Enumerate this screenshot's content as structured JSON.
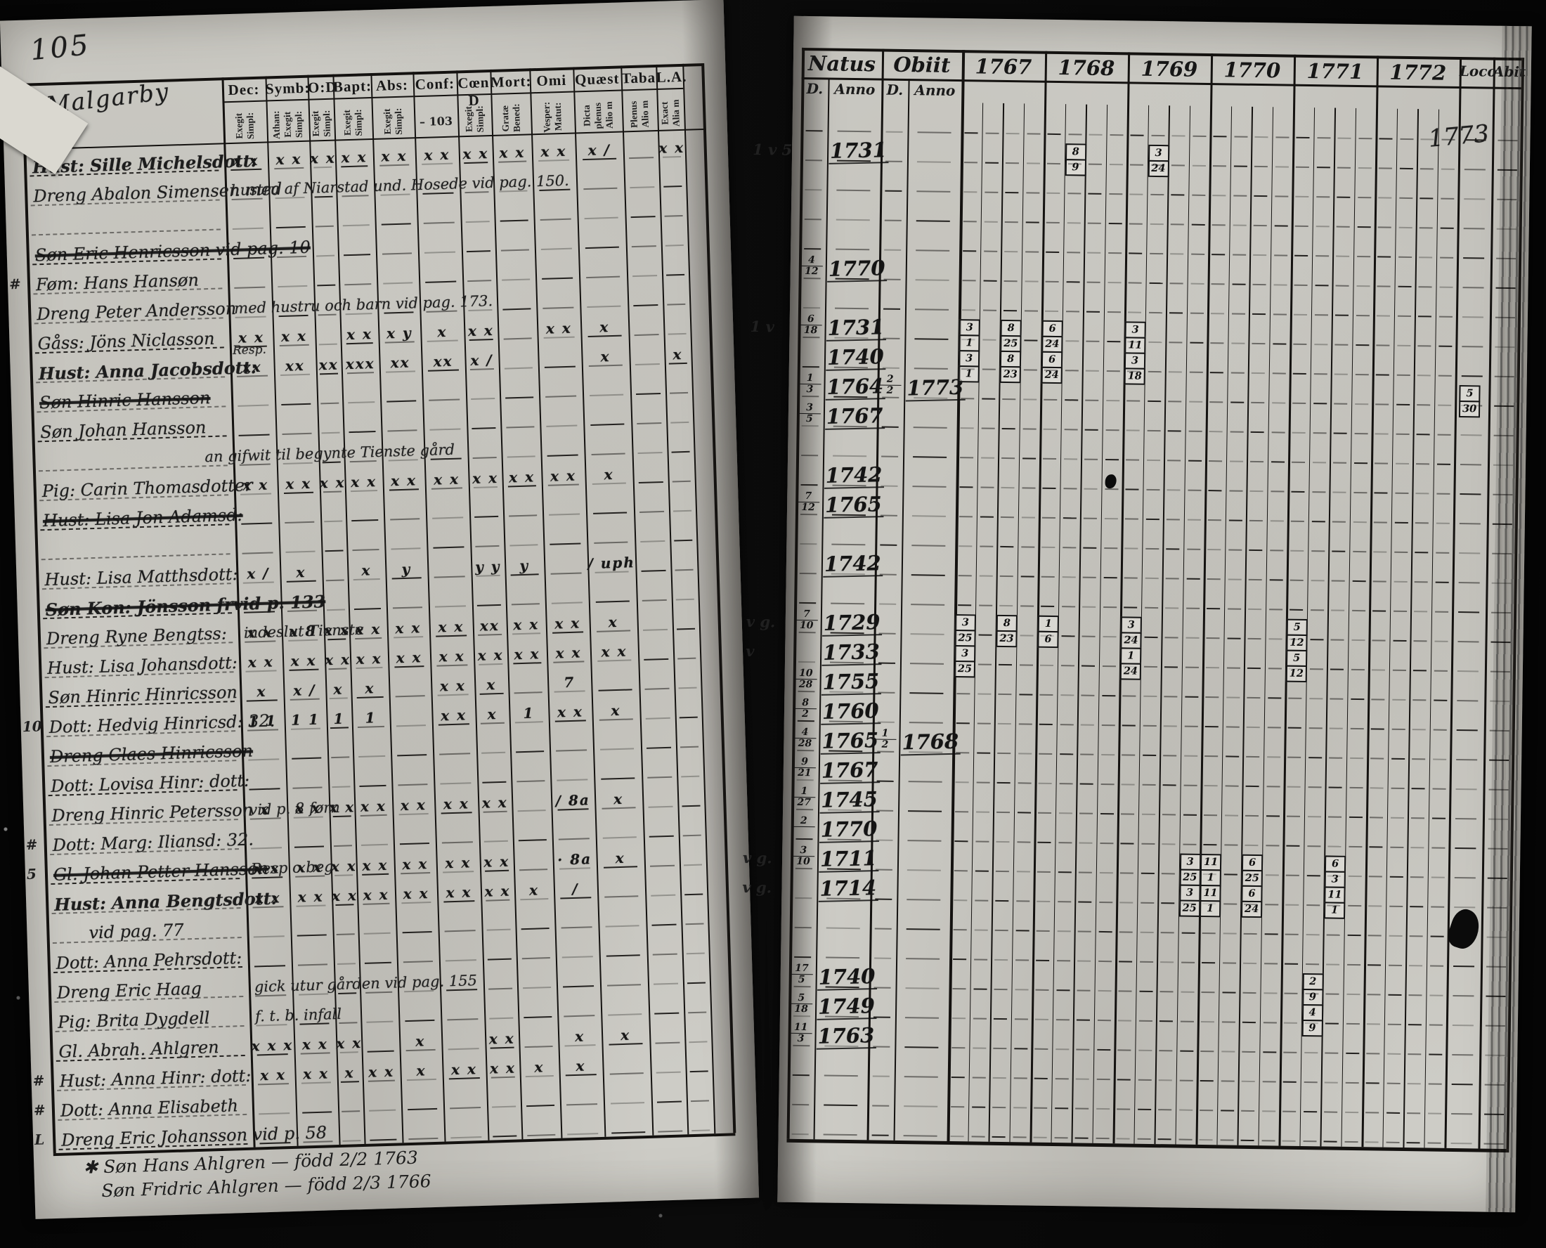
{
  "document": {
    "left_page": {
      "page_number": "105",
      "place_title": "Malgarby",
      "columns": [
        {
          "label": "Dec:",
          "subs": [
            "Exegit",
            "Simpl:"
          ]
        },
        {
          "label": "Symb:",
          "subs": [
            "Athan:",
            "Exegit",
            "Simpl:"
          ]
        },
        {
          "label": "O:D",
          "subs": [
            "Exegit",
            "Simpl:"
          ]
        },
        {
          "label": "Bapt:",
          "subs": [
            "Exegit",
            "Simpl:"
          ]
        },
        {
          "label": "Abs:",
          "subs": [
            "Exegit",
            "Simpl:"
          ]
        },
        {
          "label": "Conf:",
          "subs": [],
          "foot": "– 103"
        },
        {
          "label": "Cœn D",
          "subs": [
            "Exegit",
            "Simpl:"
          ]
        },
        {
          "label": "Mort:",
          "subs": [
            "Gratæ",
            "Bened:"
          ]
        },
        {
          "label": "Omi",
          "subs": [
            "Vesper:",
            "Matut:"
          ]
        },
        {
          "label": "Quæst",
          "subs": [
            "Dicta",
            "plenus",
            "Alio m"
          ]
        },
        {
          "label": "Taba",
          "subs": [
            "Plenus",
            "Alio m"
          ]
        },
        {
          "label": "L.A.",
          "subs": [
            "Exact",
            "Alia m"
          ]
        }
      ],
      "rows": [
        {
          "name": "Hust: Sille Michelsdott:",
          "bold": true,
          "marks": [
            "x x",
            "x x",
            "x x",
            "x x",
            "x x",
            "x x",
            "x x",
            "x x",
            "x x",
            "x /",
            "",
            "x x"
          ]
        },
        {
          "name": "Dreng Abalon Simensen med",
          "note": "hustru af Niarstad und. Hosede  vid pag. 150."
        },
        {},
        {
          "name": "Søn Eric Henricsson   vid pag. 10",
          "strike": true
        },
        {
          "margin": "#",
          "name": "Føm: Hans Hansøn"
        },
        {
          "name": "Dreng Peter Andersson",
          "note": "med hustru och barn  vid pag. 173."
        },
        {
          "name": "Gåss: Jöns Niclasson",
          "marks": [
            "x x",
            "x x",
            "",
            "x x",
            "x y",
            "x",
            "x x",
            "",
            "x x",
            "x",
            "",
            ""
          ]
        },
        {
          "name": "Hust: Anna Jacobsdott:",
          "bold": true,
          "sup": "Resp.",
          "marks": [
            "xx",
            "xx",
            "xx",
            "xxx",
            "xx",
            "xx",
            "x /",
            "",
            "",
            "x",
            "",
            "x"
          ]
        },
        {
          "name": "Søn Hinric Hansson",
          "strike": true
        },
        {
          "name": "Søn Johan Hansson"
        },
        {
          "name": "",
          "note": "an gifwit til begynte   Tienste gård"
        },
        {
          "name": "Pig: Carin Thomasdotter",
          "marks": [
            "x x",
            "x x",
            "x x",
            "x x",
            "x x",
            "x x",
            "x x",
            "x x",
            "x x",
            "x",
            "",
            ""
          ]
        },
        {
          "name": "Hust: Lisa Jon Adamsd:",
          "strike": true
        },
        {},
        {
          "name": "Hust: Lisa Matthsdott:",
          "marks": [
            "x /",
            "x",
            "",
            "x",
            "y",
            "",
            "y y",
            "y",
            "",
            "/ uph",
            "",
            ""
          ]
        },
        {
          "name": "Søn Kon: Jönsson   frvid p. 133",
          "bold": true,
          "strike": true
        },
        {
          "name": "Dreng Ryne Bengtss:",
          "note": "indeslut   Tienste",
          "marks": [
            "x x",
            "x 8",
            "x x",
            "x x",
            "x x",
            "x x",
            "xx",
            "x x",
            "x x",
            "x",
            "",
            ""
          ]
        },
        {
          "name": "Hust: Lisa Johansdott:",
          "marks": [
            "x x",
            "x x",
            "x x",
            "x x",
            "x x",
            "x x",
            "x x",
            "x x",
            "x x",
            "x x",
            "",
            ""
          ]
        },
        {
          "name": "Søn Hinric Hinricsson",
          "marks": [
            "x",
            "x /",
            "x",
            "x",
            "",
            "x x",
            "x",
            "",
            "7",
            "",
            "",
            ""
          ]
        },
        {
          "margin": "10",
          "name": "Dott: Hedvig Hinricsd: 32.",
          "marks": [
            "1 1",
            "1 1",
            "1",
            "1",
            "",
            "x x",
            "x",
            "1",
            "x x",
            "x",
            "",
            ""
          ]
        },
        {
          "name": "Dreng Claes Hinricsson",
          "strike": true
        },
        {
          "name": "Dott: Lovisa Hinr: dott:"
        },
        {
          "name": "Dreng Hinric Petersson",
          "note": "vid p. 8   førn",
          "marks": [
            "x",
            "x x",
            "x x",
            "x x",
            "x x",
            "x x",
            "x x",
            "",
            "/ 8a",
            "x",
            "",
            ""
          ]
        },
        {
          "margin": "#",
          "name": "Dott: Marg: Iliansd: 32."
        },
        {
          "margin": "5",
          "name": "Gl. Johan Petter Hansson",
          "strike": true,
          "note": "Resp o beg",
          "marks": [
            "x x",
            "x x",
            "x x",
            "x x",
            "x x",
            "x x",
            "x x",
            "",
            "· 8a",
            "x",
            "",
            ""
          ]
        },
        {
          "name": "Hust: Anna Bengtsdott:",
          "bold": true,
          "marks": [
            "x x",
            "x x",
            "x x",
            "x x",
            "x x",
            "x x",
            "x x",
            "x",
            "/",
            "",
            "",
            ""
          ]
        },
        {
          "name": "vid pag. 77",
          "indent": true
        },
        {
          "name": "Dott: Anna Pehrsdott:"
        },
        {
          "name": "Dreng Eric Haag",
          "note": "gick utur gården   vid pag. 155"
        },
        {
          "name": "Pig: Brita Dygdell",
          "note": "f. t. b. infall"
        },
        {
          "name": "Gl. Abrah. Ahlgren",
          "marks": [
            "x x x",
            "x x",
            "x x",
            "",
            "x",
            "",
            "x x",
            "",
            "x",
            "x",
            "",
            ""
          ]
        },
        {
          "margin": "#",
          "name": "Hust: Anna Hinr: dott:",
          "marks": [
            "x x",
            "x x",
            "x",
            "x x",
            "x",
            "x x",
            "x x",
            "x",
            "x",
            "",
            "",
            ""
          ]
        },
        {
          "margin": "#",
          "name": "Dott: Anna Elisabeth"
        },
        {
          "margin": "L",
          "name": "Dreng Eric Johansson   vid p. 58"
        }
      ],
      "footnotes": [
        "✱ Søn Hans Ahlgren — född 2/2 1763",
        "Søn Fridric Ahlgren — född 2/3 1766"
      ]
    },
    "right_page": {
      "corner_year": "1773",
      "header": {
        "natus": "Natus",
        "obiit": "Obiit",
        "d": "D.",
        "anno": "Anno",
        "years": [
          "1767",
          "1768",
          "1769",
          "1770",
          "1771",
          "1772"
        ],
        "loco": "Loco",
        "abit": "Abit"
      },
      "rows": [
        {},
        {
          "margin": "1 v 5",
          "anno": "1731"
        },
        {},
        {},
        {},
        {
          "d": [
            "4",
            "12"
          ],
          "anno": "1770"
        },
        {},
        {
          "margin": "1 v",
          "d": [
            "6",
            "18"
          ],
          "anno": "1731"
        },
        {
          "anno": "1740"
        },
        {
          "d": [
            "1",
            "3"
          ],
          "anno": "1764",
          "od": [
            "2",
            "2"
          ],
          "oanno": "1773"
        },
        {
          "d": [
            "3",
            "5"
          ],
          "anno": "1767"
        },
        {},
        {
          "anno": "1742"
        },
        {
          "d": [
            "7",
            "12"
          ],
          "anno": "1765"
        },
        {},
        {
          "anno": "1742"
        },
        {},
        {
          "margin": "v g.",
          "d": [
            "7",
            "10"
          ],
          "anno": "1729"
        },
        {
          "margin": "v",
          "anno": "1733"
        },
        {
          "d": [
            "10",
            "28"
          ],
          "anno": "1755"
        },
        {
          "d": [
            "8",
            "2"
          ],
          "anno": "1760"
        },
        {
          "d": [
            "4",
            "28"
          ],
          "anno": "1765",
          "od": [
            "1",
            "2"
          ],
          "oanno": "1768"
        },
        {
          "d": [
            "9",
            "21"
          ],
          "anno": "1767"
        },
        {
          "d": [
            "1",
            "27"
          ],
          "anno": "1745"
        },
        {
          "d": [
            "2",
            ""
          ],
          "anno": "1770"
        },
        {
          "margin": "v g.",
          "d": [
            "3",
            "10"
          ],
          "anno": "1711"
        },
        {
          "margin": "v g.",
          "anno": "1714"
        },
        {},
        {},
        {
          "d": [
            "17",
            "5"
          ],
          "anno": "1740"
        },
        {
          "d": [
            "5",
            "18"
          ],
          "anno": "1749"
        },
        {
          "d": [
            "11",
            "3"
          ],
          "anno": "1763"
        },
        {},
        {},
        {}
      ],
      "year_marks": [
        {
          "r": 1,
          "y": 1,
          "s": 1,
          "v": [
            "8",
            "9"
          ]
        },
        {
          "r": 1,
          "y": 2,
          "s": 1,
          "v": [
            "3",
            "24"
          ]
        },
        {
          "r": 7,
          "y": 0,
          "s": 0,
          "v": [
            "3",
            "1",
            "3",
            "1"
          ]
        },
        {
          "r": 7,
          "y": 0,
          "s": 2,
          "v": [
            "8",
            "25",
            "8",
            "23"
          ]
        },
        {
          "r": 7,
          "y": 1,
          "s": 0,
          "v": [
            "6",
            "24",
            "6",
            "24"
          ]
        },
        {
          "r": 7,
          "y": 2,
          "s": 0,
          "v": [
            "3",
            "11",
            "3",
            "18"
          ]
        },
        {
          "r": 9,
          "y": 6,
          "s": 0,
          "v": [
            "5",
            "30"
          ]
        },
        {
          "r": 17,
          "y": 0,
          "s": 0,
          "v": [
            "3",
            "25",
            "3",
            "25"
          ]
        },
        {
          "r": 17,
          "y": 0,
          "s": 2,
          "v": [
            "8",
            "23"
          ]
        },
        {
          "r": 17,
          "y": 1,
          "s": 0,
          "v": [
            "1",
            "6"
          ]
        },
        {
          "r": 17,
          "y": 2,
          "s": 0,
          "v": [
            "3",
            "24",
            "1",
            "24"
          ]
        },
        {
          "r": 17,
          "y": 4,
          "s": 0,
          "v": [
            "5",
            "12",
            "5",
            "12"
          ]
        },
        {
          "r": 25,
          "y": 2,
          "s": 3,
          "v": [
            "3",
            "25",
            "3",
            "25"
          ]
        },
        {
          "r": 25,
          "y": 3,
          "s": 0,
          "v": [
            "11",
            "1",
            "11",
            "1"
          ]
        },
        {
          "r": 25,
          "y": 3,
          "s": 2,
          "v": [
            "6",
            "25",
            "6",
            "24"
          ]
        },
        {
          "r": 25,
          "y": 4,
          "s": 2,
          "v": [
            "6",
            "3",
            "11",
            "1"
          ]
        },
        {
          "r": 29,
          "y": 4,
          "s": 1,
          "v": [
            "2",
            "9",
            "4",
            "9"
          ]
        }
      ]
    }
  }
}
